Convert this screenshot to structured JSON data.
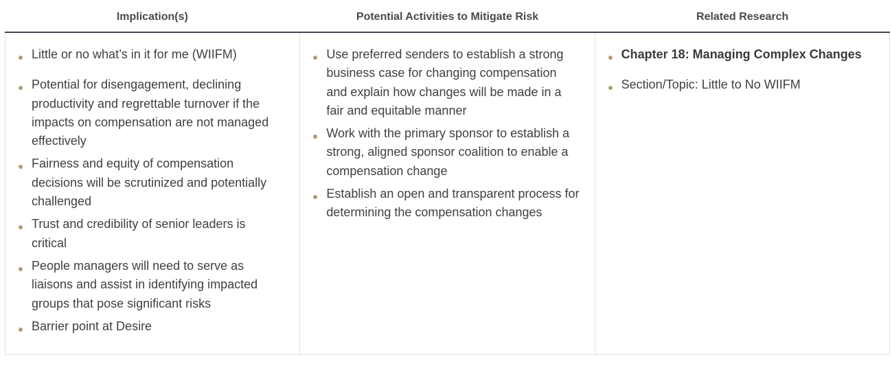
{
  "table": {
    "headers": [
      "Implication(s)",
      "Potential Activities to Mitigate Risk",
      "Related Research"
    ],
    "implications": [
      "Little or no what’s in it for me (WIIFM)",
      "Potential for disengagement, declining productivity and regrettable turnover if the impacts on compensation are not managed effectively",
      "Fairness and equity of compensation decisions will be scrutinized and potentially challenged",
      "Trust and credibility of senior leaders is critical",
      "People managers will need to serve as liaisons and assist in identifying impacted groups that pose significant risks",
      "Barrier point at Desire"
    ],
    "activities": [
      "Use preferred senders to establish a strong business case for changing compensation and explain how changes will be made in a fair and equitable manner",
      "Work with the primary sponsor to establish a strong, aligned sponsor coalition to enable a compensation change",
      "Establish an open and transparent process for determining the compensation changes"
    ],
    "research": [
      "Chapter 18: Managing Complex Changes",
      "Section/Topic: Little to No WIIFM"
    ]
  },
  "colors": {
    "bullet": "#b39a72",
    "header_rule": "#3b4450",
    "cell_border": "#e2e2e2"
  }
}
